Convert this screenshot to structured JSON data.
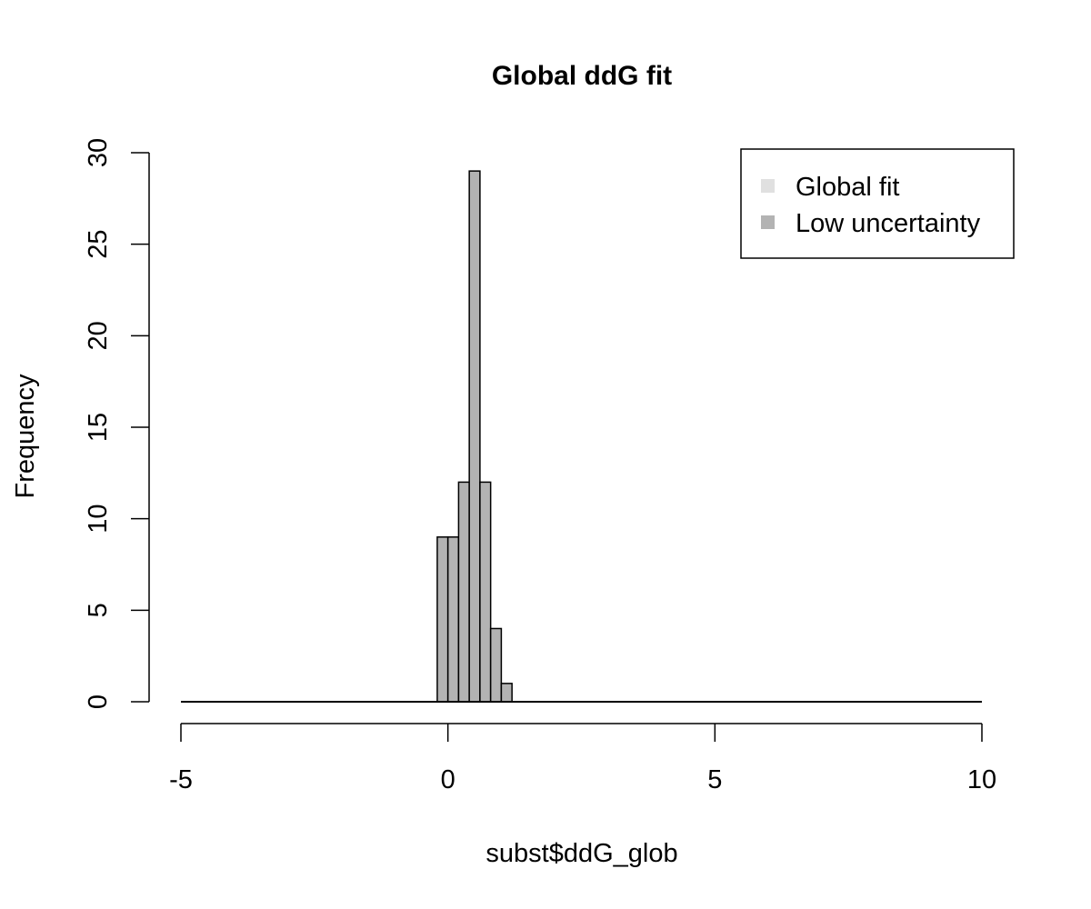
{
  "chart_data": {
    "type": "bar",
    "title": "Global ddG fit",
    "xlabel": "subst$ddG_glob",
    "ylabel": "Frequency",
    "xlim": [
      -5,
      10
    ],
    "ylim": [
      0,
      30
    ],
    "x_ticks": [
      "-5",
      "0",
      "5",
      "10"
    ],
    "y_ticks": [
      "0",
      "5",
      "10",
      "15",
      "20",
      "25",
      "30"
    ],
    "bin_width": 0.2,
    "series": [
      {
        "name": "Global fit",
        "color": "#e0e0e0",
        "bins": []
      },
      {
        "name": "Low uncertainty",
        "color": "#b3b3b3",
        "bins": [
          {
            "x0": -0.2,
            "x1": 0.0,
            "count": 9
          },
          {
            "x0": 0.0,
            "x1": 0.2,
            "count": 9
          },
          {
            "x0": 0.2,
            "x1": 0.4,
            "count": 12
          },
          {
            "x0": 0.4,
            "x1": 0.6,
            "count": 29
          },
          {
            "x0": 0.6,
            "x1": 0.8,
            "count": 12
          },
          {
            "x0": 0.8,
            "x1": 1.0,
            "count": 4
          },
          {
            "x0": 1.0,
            "x1": 1.2,
            "count": 1
          }
        ]
      }
    ],
    "baseline_range": [
      -5,
      10
    ],
    "legend": {
      "placement": "top-right",
      "entries": [
        {
          "label": "Global fit",
          "color": "#e0e0e0"
        },
        {
          "label": "Low uncertainty",
          "color": "#b3b3b3"
        }
      ]
    },
    "grid": false
  }
}
